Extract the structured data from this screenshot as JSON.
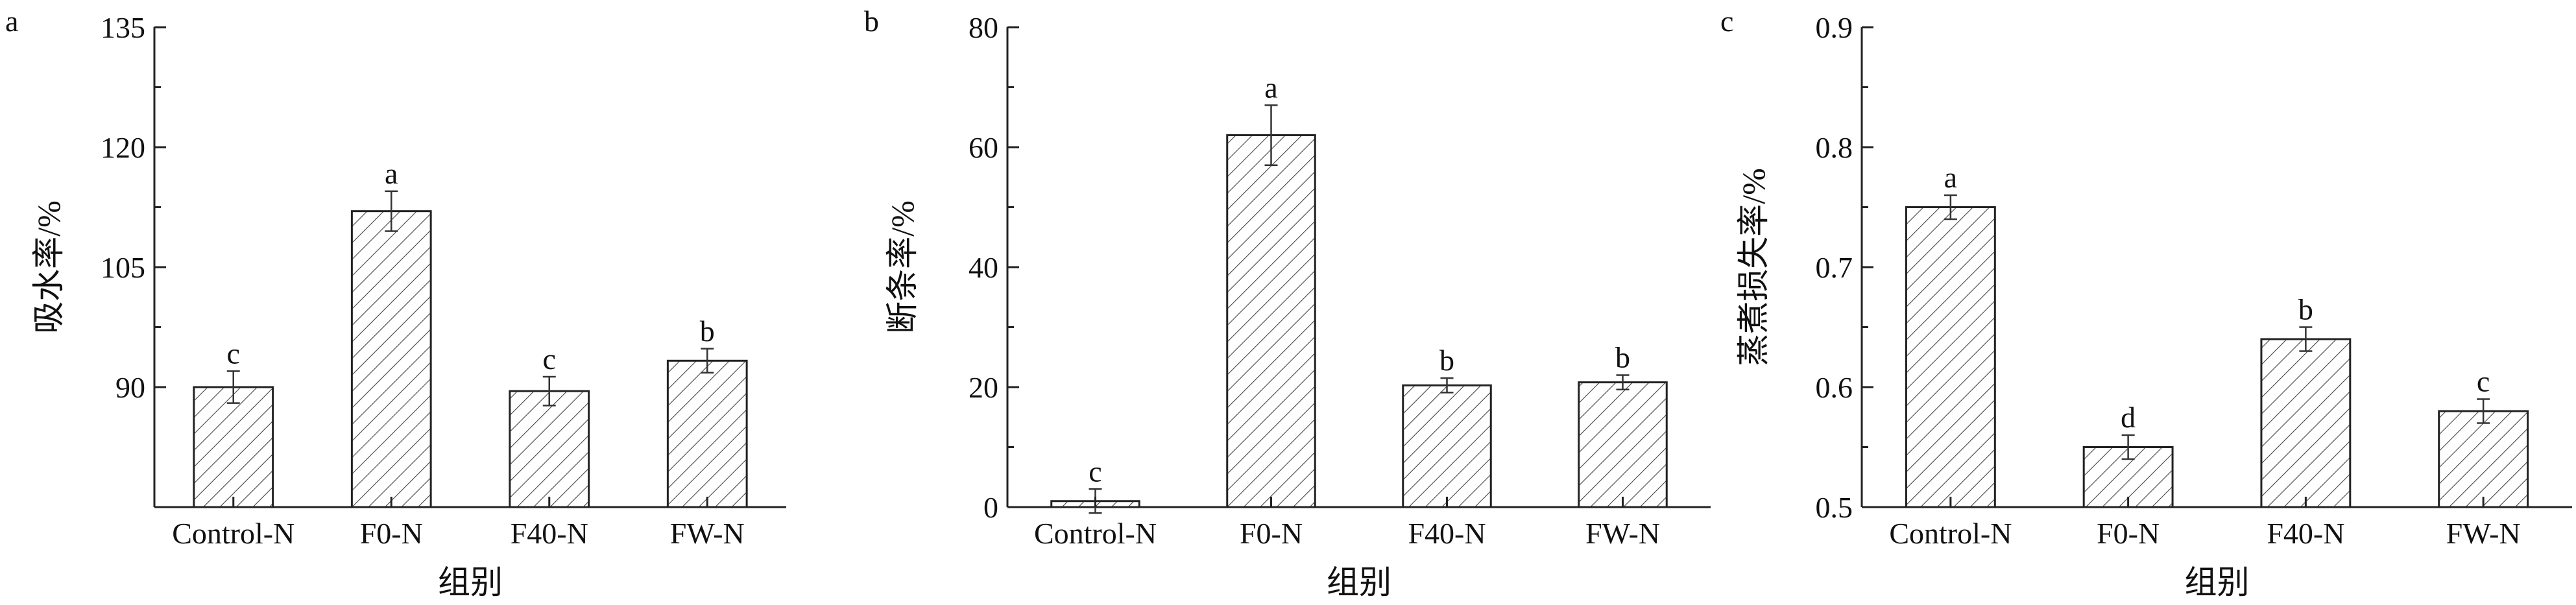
{
  "chart_data": [
    {
      "type": "bar",
      "panel_label": "a",
      "ylabel": "吸水率/%",
      "xlabel": "组别",
      "categories": [
        "Control-N",
        "F0-N",
        "F40-N",
        "FW-N"
      ],
      "values": [
        90.0,
        112.0,
        89.5,
        93.3
      ],
      "errors": [
        2.0,
        2.5,
        1.8,
        1.5
      ],
      "significance": [
        "c",
        "a",
        "c",
        "b"
      ],
      "ylim": [
        75,
        135
      ],
      "yticks": [
        90,
        105,
        120,
        135
      ],
      "ytick_labels": [
        "90",
        "105",
        "120",
        "135"
      ],
      "grid": false,
      "bar_pattern": "hatched"
    },
    {
      "type": "bar",
      "panel_label": "b",
      "ylabel": "断条率/%",
      "xlabel": "组别",
      "categories": [
        "Control-N",
        "F0-N",
        "F40-N",
        "FW-N"
      ],
      "values": [
        1.0,
        62.0,
        20.3,
        20.8
      ],
      "errors": [
        2.0,
        5.0,
        1.2,
        1.2
      ],
      "significance": [
        "c",
        "a",
        "b",
        "b"
      ],
      "ylim": [
        0,
        80
      ],
      "yticks": [
        0,
        20,
        40,
        60,
        80
      ],
      "ytick_labels": [
        "0",
        "20",
        "40",
        "60",
        "80"
      ],
      "grid": false,
      "bar_pattern": "hatched"
    },
    {
      "type": "bar",
      "panel_label": "c",
      "ylabel": "蒸煮损失率/%",
      "xlabel": "组别",
      "categories": [
        "Control-N",
        "F0-N",
        "F40-N",
        "FW-N"
      ],
      "values": [
        0.75,
        0.55,
        0.64,
        0.58
      ],
      "errors": [
        0.01,
        0.01,
        0.01,
        0.01
      ],
      "significance": [
        "a",
        "d",
        "b",
        "c"
      ],
      "ylim": [
        0.5,
        0.9
      ],
      "yticks": [
        0.5,
        0.6,
        0.7,
        0.8,
        0.9
      ],
      "ytick_labels": [
        "0.5",
        "0.6",
        "0.7",
        "0.8",
        "0.9"
      ],
      "grid": false,
      "bar_pattern": "hatched"
    }
  ]
}
